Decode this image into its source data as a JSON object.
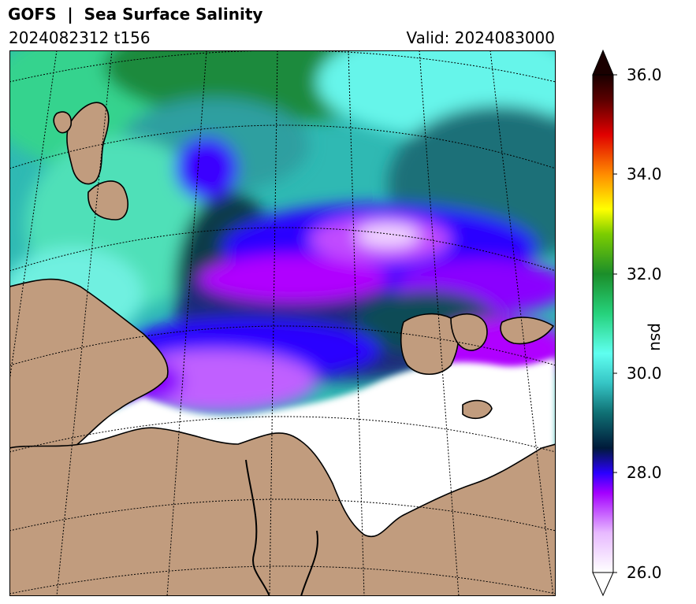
{
  "header": {
    "title": "GOFS  |  Sea Surface Salinity",
    "subtitle_left": "2024082312 t156",
    "subtitle_right": "Valid: 2024083000"
  },
  "colorbar": {
    "label": "psu",
    "ticks": [
      "36.0",
      "34.0",
      "32.0",
      "30.0",
      "28.0",
      "26.0"
    ],
    "min": 26.0,
    "max": 36.0,
    "extend": "both",
    "colors": [
      "#ffffff",
      "#e7b9ff",
      "#a300ff",
      "#2a00ff",
      "#001a3a",
      "#0f6f73",
      "#35c4c4",
      "#5ffff0",
      "#26d27c",
      "#1b8e2a",
      "#7ccd00",
      "#ffff00",
      "#ff8c00",
      "#e00000",
      "#5a0000",
      "#1a0000"
    ]
  },
  "map": {
    "colors": {
      "land": "#c19c7e",
      "ice_or_fresh": "#ffffff",
      "deep_blue": "#1f00cc",
      "violet": "#b000ff",
      "dark_teal": "#0d3a4a",
      "teal": "#2ea3a3",
      "cyan": "#66f2e6",
      "green": "#1c9a4a"
    }
  }
}
